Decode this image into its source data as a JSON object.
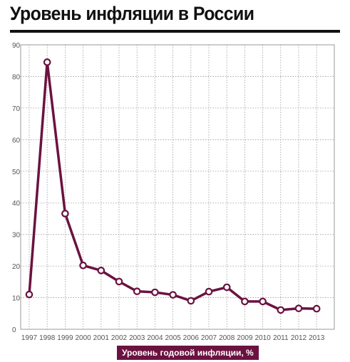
{
  "title": "Уровень инфляции в России",
  "colors": {
    "line": "#6b1240",
    "grid": "#9a9a9a",
    "title_rule": "#111111",
    "legend_bg": "#6b1240"
  },
  "chart_data": {
    "type": "line",
    "title": "Уровень инфляции в России",
    "xlabel": "",
    "ylabel": "",
    "x": [
      "1997",
      "1998",
      "1999",
      "2000",
      "2001",
      "2002",
      "2003",
      "2004",
      "2005",
      "2006",
      "2007",
      "2008",
      "2009",
      "2010",
      "2011",
      "2012",
      "2013"
    ],
    "series": [
      {
        "name": "Уровень годовой инфляции, %",
        "values": [
          11,
          84.5,
          36.6,
          20.2,
          18.6,
          15.1,
          12,
          11.7,
          10.9,
          9,
          11.9,
          13.3,
          8.8,
          8.8,
          6.1,
          6.6,
          6.5
        ]
      }
    ],
    "ylim": [
      0,
      90
    ],
    "yticks": [
      "0",
      "10",
      "20",
      "30",
      "40",
      "50",
      "60",
      "70",
      "80",
      "90"
    ],
    "grid": true,
    "legend": "bottom-center"
  }
}
